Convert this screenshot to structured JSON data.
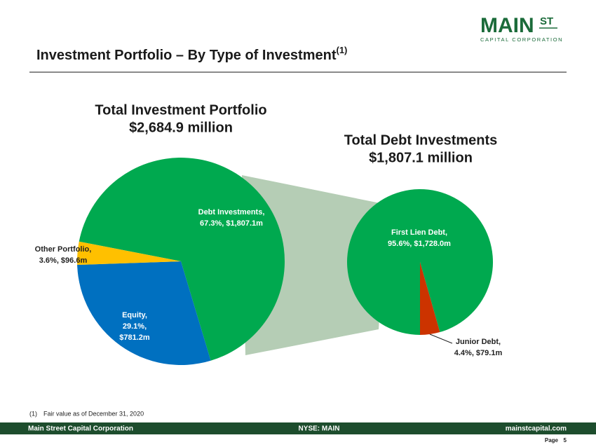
{
  "logo": {
    "main": "MAIN",
    "st": "ST",
    "sub": "CAPITAL CORPORATION"
  },
  "header": {
    "title": "Investment Portfolio – By Type of Investment",
    "note_ref": "(1)"
  },
  "chart_data": [
    {
      "type": "pie",
      "title": "Total Investment Portfolio",
      "subtitle": "$2,684.9 million",
      "categories": [
        "Debt Investments,",
        "Equity,",
        "Other Portfolio,"
      ],
      "values": [
        67.3,
        29.1,
        3.6
      ],
      "value_labels": [
        [
          "67.3%, $1,807.1m"
        ],
        [
          "29.1%,",
          "$781.2m"
        ],
        [
          "3.6%, $96.6m"
        ]
      ],
      "colors": [
        "#00a94f",
        "#0070c0",
        "#ffc000"
      ]
    },
    {
      "type": "pie",
      "title": "Total Debt Investments",
      "subtitle": "$1,807.1 million",
      "categories": [
        "First Lien Debt,",
        "Junior Debt,"
      ],
      "values": [
        95.6,
        4.4
      ],
      "value_labels": [
        [
          "95.6%, $1,728.0m"
        ],
        [
          "4.4%, $79.1m"
        ]
      ],
      "colors": [
        "#00a94f",
        "#cc3300"
      ]
    }
  ],
  "footnote": {
    "ref": "(1)",
    "text": "Fair value as of December 31, 2020"
  },
  "footer": {
    "left": "Main Street Capital Corporation",
    "center": "NYSE: MAIN",
    "right": "mainstcapital.com",
    "page_label": "Page",
    "page": "5"
  }
}
